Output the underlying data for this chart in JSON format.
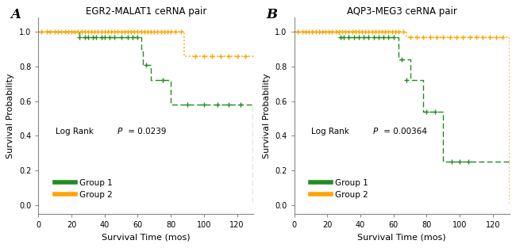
{
  "panel_A": {
    "title": "EGR2-MALAT1 ceRNA pair",
    "label": "A",
    "pvalue": "Log Rank ρ = 0.0239",
    "pvalue_prefix": "Log Rank ",
    "pvalue_p": "P",
    "pvalue_suffix": " = 0.0239",
    "group1_color": "#228B22",
    "group2_color": "#FFA500",
    "group1_steps": [
      [
        0,
        1.0
      ],
      [
        22,
        1.0
      ],
      [
        25,
        0.97
      ],
      [
        60,
        0.97
      ],
      [
        62,
        0.9
      ],
      [
        63,
        0.81
      ],
      [
        68,
        0.72
      ],
      [
        80,
        0.58
      ],
      [
        130,
        0.58
      ],
      [
        130,
        0.0
      ]
    ],
    "group1_censors": [
      [
        25,
        0.97
      ],
      [
        28,
        0.97
      ],
      [
        30,
        0.97
      ],
      [
        33,
        0.97
      ],
      [
        35,
        0.97
      ],
      [
        38,
        0.97
      ],
      [
        40,
        0.97
      ],
      [
        43,
        0.97
      ],
      [
        46,
        0.97
      ],
      [
        50,
        0.97
      ],
      [
        54,
        0.97
      ],
      [
        57,
        0.97
      ],
      [
        60,
        0.97
      ],
      [
        65,
        0.81
      ],
      [
        75,
        0.72
      ],
      [
        90,
        0.58
      ],
      [
        100,
        0.58
      ],
      [
        108,
        0.58
      ],
      [
        115,
        0.58
      ],
      [
        122,
        0.58
      ]
    ],
    "group2_steps": [
      [
        0,
        1.0
      ],
      [
        85,
        1.0
      ],
      [
        88,
        0.86
      ],
      [
        130,
        0.86
      ]
    ],
    "group2_censors": [
      [
        2,
        1.0
      ],
      [
        5,
        1.0
      ],
      [
        7,
        1.0
      ],
      [
        10,
        1.0
      ],
      [
        12,
        1.0
      ],
      [
        14,
        1.0
      ],
      [
        16,
        1.0
      ],
      [
        18,
        1.0
      ],
      [
        20,
        1.0
      ],
      [
        22,
        1.0
      ],
      [
        24,
        1.0
      ],
      [
        26,
        1.0
      ],
      [
        28,
        1.0
      ],
      [
        30,
        1.0
      ],
      [
        32,
        1.0
      ],
      [
        34,
        1.0
      ],
      [
        36,
        1.0
      ],
      [
        38,
        1.0
      ],
      [
        40,
        1.0
      ],
      [
        42,
        1.0
      ],
      [
        44,
        1.0
      ],
      [
        46,
        1.0
      ],
      [
        48,
        1.0
      ],
      [
        50,
        1.0
      ],
      [
        52,
        1.0
      ],
      [
        54,
        1.0
      ],
      [
        56,
        1.0
      ],
      [
        58,
        1.0
      ],
      [
        60,
        1.0
      ],
      [
        62,
        1.0
      ],
      [
        64,
        1.0
      ],
      [
        66,
        1.0
      ],
      [
        68,
        1.0
      ],
      [
        70,
        1.0
      ],
      [
        72,
        1.0
      ],
      [
        74,
        1.0
      ],
      [
        76,
        1.0
      ],
      [
        78,
        1.0
      ],
      [
        80,
        1.0
      ],
      [
        83,
        1.0
      ],
      [
        86,
        1.0
      ],
      [
        95,
        0.86
      ],
      [
        100,
        0.86
      ],
      [
        105,
        0.86
      ],
      [
        110,
        0.86
      ],
      [
        115,
        0.86
      ],
      [
        120,
        0.86
      ],
      [
        125,
        0.86
      ]
    ]
  },
  "panel_B": {
    "title": "AQP3-MEG3 ceRNA pair",
    "label": "B",
    "pvalue_prefix": "Log Rank ",
    "pvalue_p": "P",
    "pvalue_suffix": " = 0.00364",
    "group1_color": "#228B22",
    "group2_color": "#FFA500",
    "group1_steps": [
      [
        0,
        1.0
      ],
      [
        25,
        1.0
      ],
      [
        27,
        0.97
      ],
      [
        60,
        0.97
      ],
      [
        63,
        0.84
      ],
      [
        70,
        0.72
      ],
      [
        78,
        0.54
      ],
      [
        90,
        0.25
      ],
      [
        130,
        0.25
      ]
    ],
    "group1_censors": [
      [
        28,
        0.97
      ],
      [
        30,
        0.97
      ],
      [
        33,
        0.97
      ],
      [
        36,
        0.97
      ],
      [
        39,
        0.97
      ],
      [
        42,
        0.97
      ],
      [
        45,
        0.97
      ],
      [
        48,
        0.97
      ],
      [
        51,
        0.97
      ],
      [
        54,
        0.97
      ],
      [
        57,
        0.97
      ],
      [
        60,
        0.97
      ],
      [
        65,
        0.84
      ],
      [
        68,
        0.72
      ],
      [
        80,
        0.54
      ],
      [
        85,
        0.54
      ],
      [
        95,
        0.25
      ],
      [
        100,
        0.25
      ],
      [
        105,
        0.25
      ]
    ],
    "group2_steps": [
      [
        0,
        1.0
      ],
      [
        65,
        1.0
      ],
      [
        68,
        0.97
      ],
      [
        130,
        0.97
      ],
      [
        130,
        0.0
      ]
    ],
    "group2_censors": [
      [
        2,
        1.0
      ],
      [
        5,
        1.0
      ],
      [
        7,
        1.0
      ],
      [
        9,
        1.0
      ],
      [
        11,
        1.0
      ],
      [
        13,
        1.0
      ],
      [
        15,
        1.0
      ],
      [
        17,
        1.0
      ],
      [
        19,
        1.0
      ],
      [
        21,
        1.0
      ],
      [
        23,
        1.0
      ],
      [
        25,
        1.0
      ],
      [
        27,
        1.0
      ],
      [
        29,
        1.0
      ],
      [
        31,
        1.0
      ],
      [
        33,
        1.0
      ],
      [
        35,
        1.0
      ],
      [
        37,
        1.0
      ],
      [
        39,
        1.0
      ],
      [
        41,
        1.0
      ],
      [
        43,
        1.0
      ],
      [
        45,
        1.0
      ],
      [
        47,
        1.0
      ],
      [
        49,
        1.0
      ],
      [
        51,
        1.0
      ],
      [
        53,
        1.0
      ],
      [
        55,
        1.0
      ],
      [
        57,
        1.0
      ],
      [
        59,
        1.0
      ],
      [
        61,
        1.0
      ],
      [
        63,
        1.0
      ],
      [
        66,
        1.0
      ],
      [
        70,
        0.97
      ],
      [
        74,
        0.97
      ],
      [
        78,
        0.97
      ],
      [
        82,
        0.97
      ],
      [
        86,
        0.97
      ],
      [
        90,
        0.97
      ],
      [
        94,
        0.97
      ],
      [
        98,
        0.97
      ],
      [
        102,
        0.97
      ],
      [
        106,
        0.97
      ],
      [
        110,
        0.97
      ],
      [
        114,
        0.97
      ],
      [
        118,
        0.97
      ],
      [
        122,
        0.97
      ],
      [
        126,
        0.97
      ]
    ]
  },
  "xlim": [
    0,
    130
  ],
  "ylim": [
    -0.05,
    1.08
  ],
  "xticks": [
    0,
    20,
    40,
    60,
    80,
    100,
    120
  ],
  "yticks": [
    0.0,
    0.2,
    0.4,
    0.6,
    0.8,
    1.0
  ],
  "xlabel": "Survival Time (mos)",
  "ylabel": "Survival Probability",
  "bg_color": "#ffffff",
  "legend_group1": "Group 1",
  "legend_group2": "Group 2",
  "axis_color": "#888888"
}
